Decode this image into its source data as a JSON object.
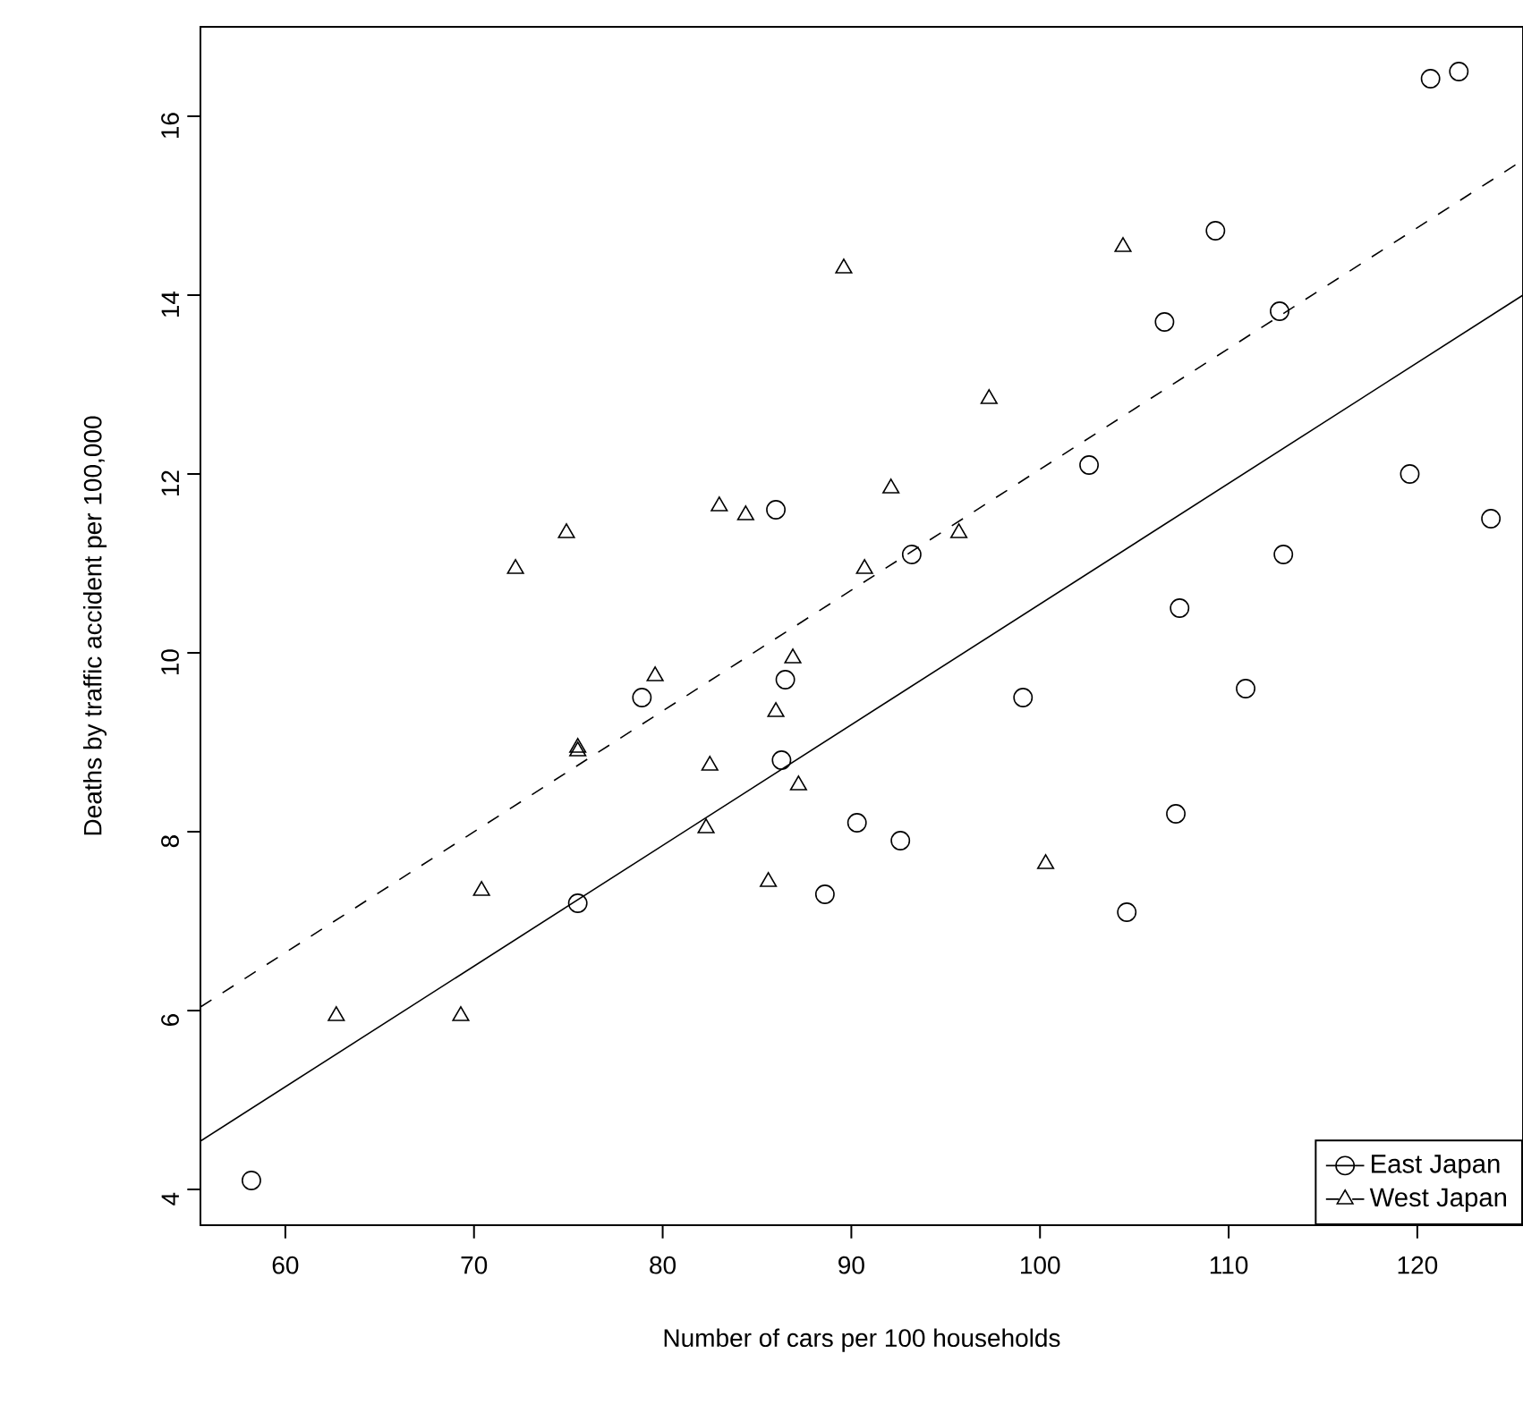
{
  "chart_data": {
    "type": "scatter",
    "xlabel": "Number of cars per 100 households",
    "ylabel": "Deaths by traffic accident per 100,000",
    "xlim": [
      55.5,
      125.6
    ],
    "ylim": [
      3.6,
      17.0
    ],
    "xticks": [
      60,
      70,
      80,
      90,
      100,
      110,
      120
    ],
    "yticks": [
      4,
      6,
      8,
      10,
      12,
      14,
      16
    ],
    "legend": "bottom right",
    "series": [
      {
        "name": "East Japan",
        "marker": "circle",
        "color": "#000000",
        "x": [
          86.0,
          120.7,
          122.2,
          109.3,
          106.6,
          112.7,
          102.6,
          93.2,
          119.6,
          123.9,
          112.9,
          107.4,
          78.9,
          86.5,
          86.3,
          90.3,
          92.6,
          88.6,
          75.5,
          58.2,
          99.1,
          110.9,
          107.2,
          104.6
        ],
        "values": [
          11.6,
          16.42,
          16.5,
          14.72,
          13.7,
          13.82,
          12.1,
          11.1,
          12.0,
          11.5,
          11.1,
          10.5,
          9.5,
          9.7,
          8.8,
          8.1,
          7.9,
          7.3,
          7.2,
          4.1,
          9.5,
          9.6,
          8.2,
          7.1
        ]
      },
      {
        "name": "West Japan",
        "marker": "triangle",
        "color": "#000000",
        "x": [
          89.6,
          83.0,
          84.4,
          74.9,
          72.2,
          104.4,
          97.3,
          92.1,
          95.7,
          90.7,
          86.9,
          79.6,
          86.0,
          75.5,
          75.5,
          82.5,
          87.2,
          82.3,
          85.6,
          70.4,
          62.7,
          69.3,
          100.3
        ],
        "values": [
          14.3,
          11.64,
          11.54,
          11.34,
          10.94,
          14.54,
          12.84,
          11.84,
          11.34,
          10.94,
          9.94,
          9.74,
          9.34,
          8.94,
          8.9,
          8.74,
          8.52,
          8.04,
          7.44,
          7.34,
          5.94,
          5.94,
          7.64
        ]
      },
      {
        "type": "line",
        "line_style": "solid",
        "color": "#000000",
        "x": [
          55.5,
          125.6
        ],
        "values": [
          4.54,
          14.0
        ]
      },
      {
        "type": "line",
        "line_style": "dashed",
        "color": "#000000",
        "x": [
          55.5,
          125.6
        ],
        "values": [
          6.04,
          15.51
        ]
      }
    ]
  }
}
